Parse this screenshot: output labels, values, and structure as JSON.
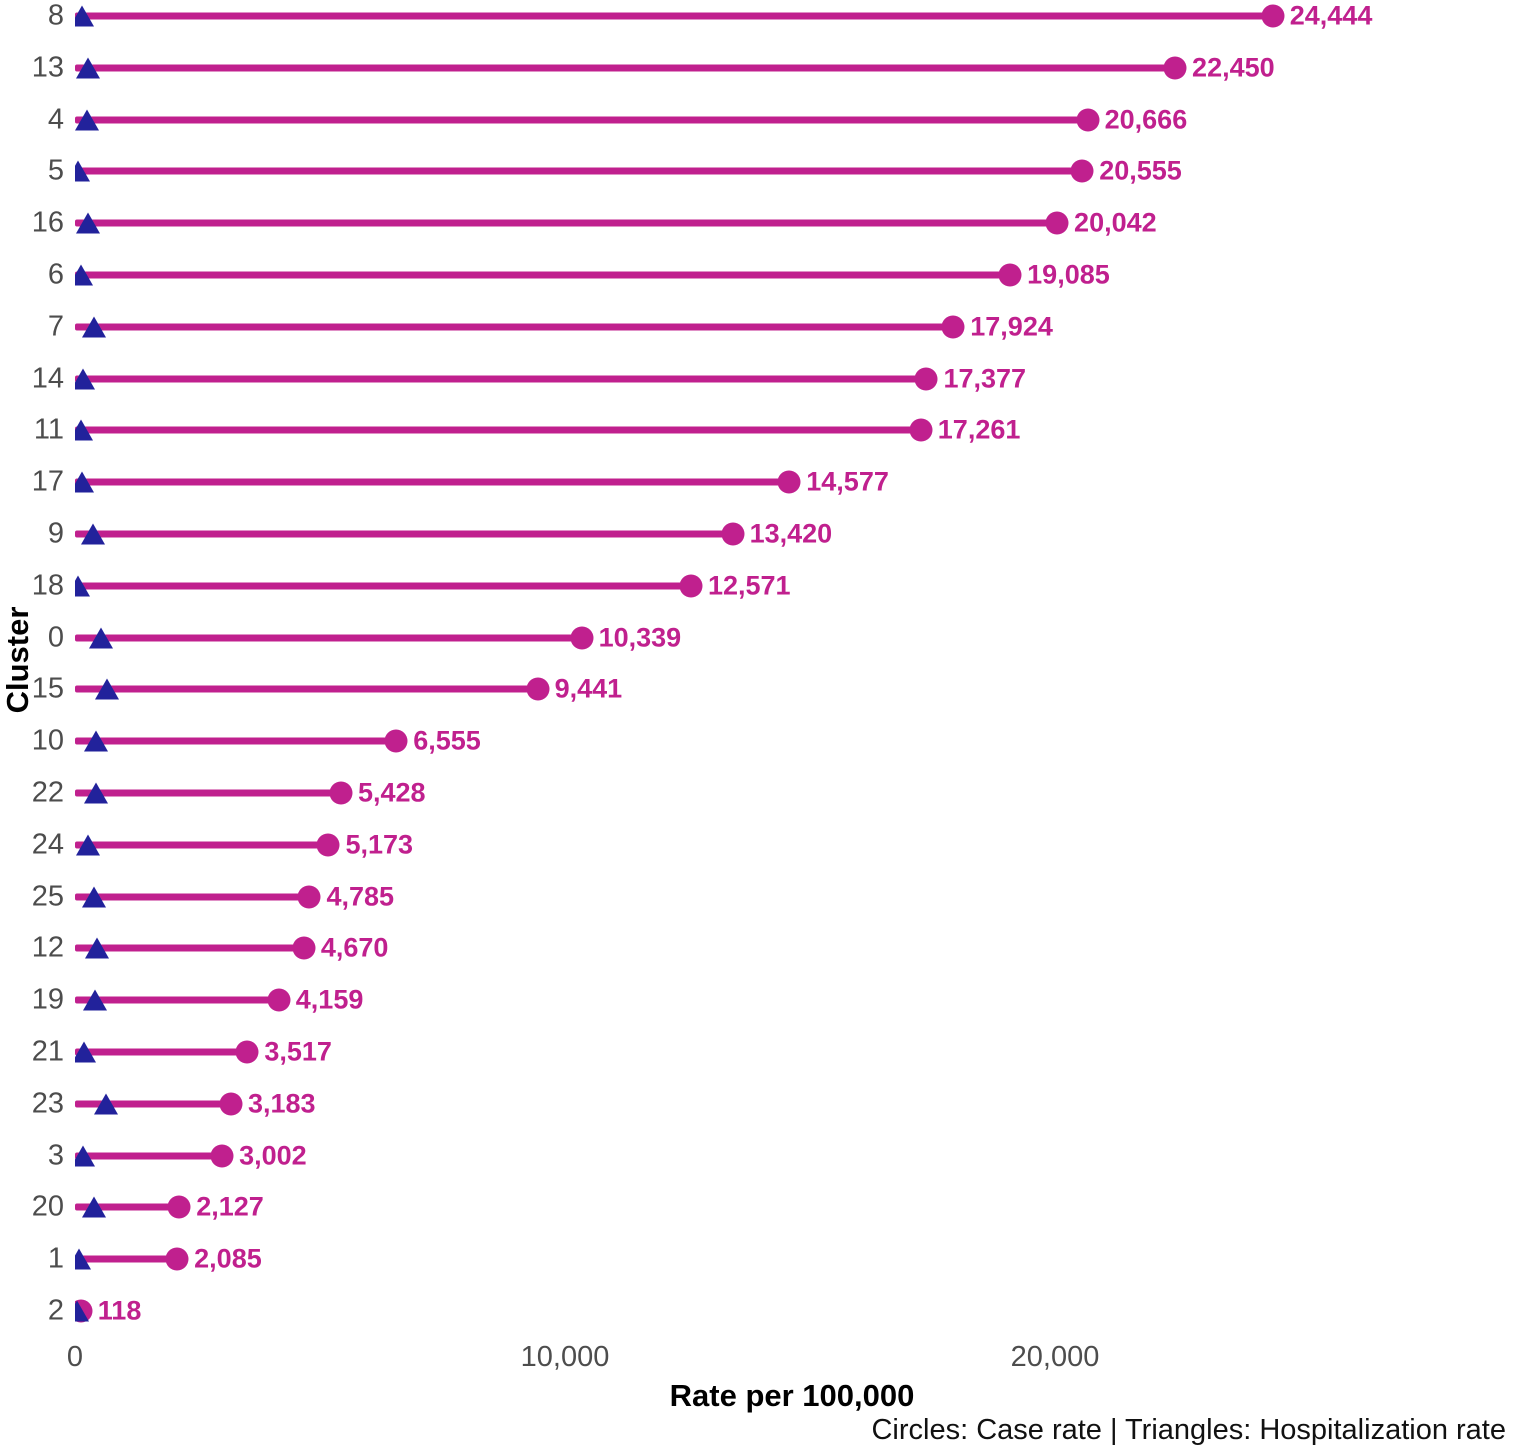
{
  "colors": {
    "case_rate": "#C0208E",
    "hospitalization_rate": "#22229B",
    "axis_text": "#4d4d4d",
    "title_text": "#000000"
  },
  "axis": {
    "x_title": "Rate per 100,000",
    "y_title": "Cluster",
    "x_tick_labels": [
      "0",
      "10,000",
      "20,000"
    ]
  },
  "footnote": "Circles: Case rate | Triangles: Hospitalization rate",
  "chart_data": {
    "type": "lollipop-dumbbell",
    "title": "",
    "xlabel": "Rate per 100,000",
    "ylabel": "Cluster",
    "xlim": [
      0,
      25600
    ],
    "x_ticks": [
      0,
      10000,
      20000
    ],
    "grid": false,
    "legend_note": "Circles: Case rate | Triangles: Hospitalization rate",
    "categories": [
      "8",
      "13",
      "4",
      "5",
      "16",
      "6",
      "7",
      "14",
      "11",
      "17",
      "9",
      "18",
      "0",
      "15",
      "10",
      "22",
      "24",
      "25",
      "12",
      "19",
      "21",
      "23",
      "3",
      "20",
      "1",
      "2"
    ],
    "series": [
      {
        "name": "Case rate",
        "marker": "circle",
        "values": [
          24444,
          22450,
          20666,
          20555,
          20042,
          19085,
          17924,
          17377,
          17261,
          14577,
          13420,
          12571,
          10339,
          9441,
          6555,
          5428,
          5173,
          4785,
          4670,
          4159,
          3517,
          3183,
          3002,
          2127,
          2085,
          118
        ],
        "labels": [
          "24,444",
          "22,450",
          "20,666",
          "20,555",
          "20,042",
          "19,085",
          "17,924",
          "17,377",
          "17,261",
          "14,577",
          "13,420",
          "12,571",
          "10,339",
          "9,441",
          "6,555",
          "5,428",
          "5,173",
          "4,785",
          "4,670",
          "4,159",
          "3,517",
          "3,183",
          "3,002",
          "2,127",
          "2,085",
          "118"
        ]
      },
      {
        "name": "Hospitalization rate",
        "marker": "triangle",
        "values_estimated": [
          140,
          265,
          245,
          60,
          265,
          120,
          390,
          165,
          120,
          140,
          370,
          60,
          530,
          650,
          430,
          430,
          265,
          390,
          450,
          410,
          185,
          630,
          165,
          390,
          80,
          40
        ]
      }
    ]
  }
}
